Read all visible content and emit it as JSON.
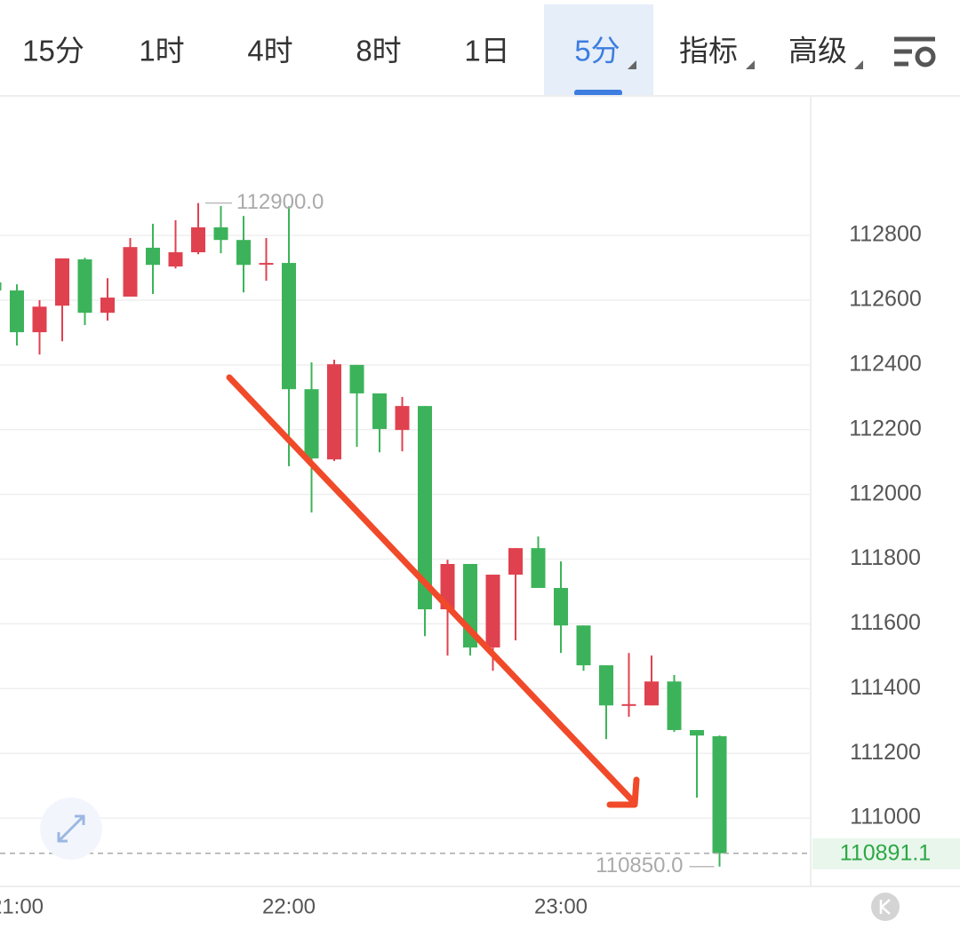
{
  "toolbar": {
    "tabs": [
      "15分",
      "1时",
      "4时",
      "8时",
      "1日",
      "5分",
      "指标",
      "高级"
    ],
    "selected": 5
  },
  "chart_data": {
    "type": "candlestick",
    "categories": [
      null,
      "21:00",
      null,
      null,
      null,
      null,
      null,
      null,
      null,
      null,
      null,
      null,
      null,
      "22:00",
      null,
      null,
      null,
      null,
      null,
      null,
      null,
      null,
      null,
      null,
      null,
      "23:00",
      null,
      null,
      null,
      null,
      null,
      null,
      null
    ],
    "open": [
      112655,
      112630,
      112501,
      112583,
      112726,
      112561,
      112611,
      112762,
      112704,
      112748,
      112825,
      112786,
      112712,
      112715,
      112325,
      112108,
      112400,
      112312,
      112199,
      112273,
      111645,
      111785,
      111527,
      111752,
      111834,
      111711,
      111595,
      111472,
      111348,
      111348,
      111422,
      111272,
      111253
    ],
    "high": [
      112660,
      112649,
      112600,
      112729,
      112731,
      112668,
      112792,
      112836,
      112847,
      112900,
      112891,
      112860,
      112792,
      112890,
      112408,
      112416,
      112400,
      112312,
      112301,
      112273,
      111798,
      111785,
      111752,
      111834,
      111870,
      111793,
      111595,
      111472,
      111510,
      111502,
      111442,
      111272,
      111255
    ],
    "low": [
      112620,
      112460,
      112432,
      112473,
      112523,
      112537,
      112611,
      112619,
      112698,
      112742,
      112745,
      112624,
      112660,
      112087,
      111944,
      112103,
      112147,
      112130,
      112133,
      111562,
      111502,
      111502,
      111455,
      111549,
      111711,
      111510,
      111455,
      111244,
      111313,
      111348,
      111266,
      111063,
      110850
    ],
    "close": [
      112630,
      112501,
      112580,
      112729,
      112561,
      112608,
      112764,
      112709,
      112748,
      112825,
      112786,
      112709,
      112715,
      112325,
      112111,
      112402,
      112312,
      112202,
      112273,
      111645,
      111785,
      111527,
      111752,
      111834,
      111711,
      111595,
      111472,
      111348,
      111352,
      111422,
      111272,
      111255,
      110891.1
    ],
    "up_color": "#e0414f",
    "down_color": "#3cb35a",
    "ylim": [
      110789,
      113231
    ],
    "yticks": [
      111000,
      111200,
      111400,
      111600,
      111800,
      112000,
      112200,
      112400,
      112600,
      112800
    ],
    "grid": true,
    "last_price": 110891.1,
    "max_price": {
      "value": 112900,
      "label": "112900.0"
    },
    "min_price": {
      "value": 110850,
      "label": "110850.0"
    }
  }
}
